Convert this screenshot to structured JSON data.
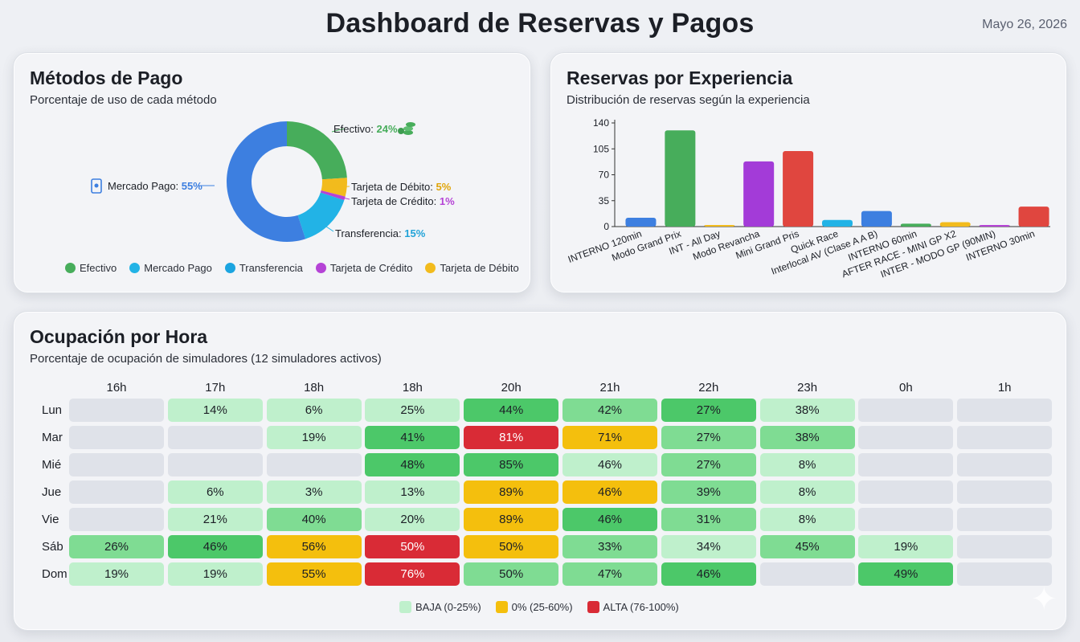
{
  "header": {
    "title": "Dashboard de Reservas y Pagos",
    "date": "Mayo 26, 2026"
  },
  "colors": {
    "efectivo": "#47ad5b",
    "mercado_pago": "#3d7fe0",
    "transferencia": "#22b3e6",
    "credito": "#b543d6",
    "debito": "#f2bb1d",
    "heat_empty": "#dfe2e9",
    "heat_low": "#bff0cc",
    "heat_mid_green": "#7fdc93",
    "heat_green": "#4cc869",
    "heat_yellow": "#f4bf0d",
    "heat_red": "#d92b36"
  },
  "payment": {
    "title": "Métodos de Pago",
    "subtitle": "Porcentaje de uso de cada método",
    "chart_data": {
      "type": "pie",
      "labels": [
        "Efectivo",
        "Tarjeta de Débito",
        "Tarjeta de Crédito",
        "Transferencia",
        "Mercado Pago"
      ],
      "values": [
        24,
        5,
        1,
        15,
        55
      ],
      "unit": "%"
    },
    "callouts": {
      "efectivo_label": "Efectivo:",
      "efectivo_value": "24%",
      "debito_label": "Tarjeta de Débito:",
      "debito_value": "5%",
      "credito_label": "Tarjeta de Crédito:",
      "credito_value": "1%",
      "transferencia_label": "Transferencia:",
      "transferencia_value": "15%",
      "mp_label": "Mercado Pago:",
      "mp_value": "55%"
    },
    "legend": [
      "Efectivo",
      "Mercado Pago",
      "Transferencia",
      "Tarjeta de Crédito",
      "Tarjeta de Débito"
    ]
  },
  "experiences": {
    "title": "Reservas por Experiencia",
    "subtitle": "Distribución de reservas según la experiencia",
    "chart_data": {
      "type": "bar",
      "categories": [
        "INTERNO 120min",
        "Modo Grand Prix",
        "INT - All Day",
        "Modo Revancha",
        "Mini Grand Pris",
        "Quick Race",
        "Interlocal AV (Clase A A B)",
        "INTERNO 60min",
        "AFTER RACE - MINI GP X2",
        "INTER - MODO GP (90MIN)",
        "INTERNO 30min"
      ],
      "values": [
        12,
        130,
        1,
        88,
        102,
        9,
        21,
        4,
        6,
        1,
        27
      ],
      "colors": [
        "#3d7fe0",
        "#47ad5b",
        "#f2bb1d",
        "#a33bd8",
        "#e0463f",
        "#22b3e6",
        "#3d7fe0",
        "#47ad5b",
        "#f2bb1d",
        "#b543d6",
        "#e0463f"
      ],
      "yticks": [
        0,
        35,
        70,
        105,
        140
      ],
      "ylim": [
        0,
        140
      ]
    }
  },
  "occupancy": {
    "title": "Ocupación por Hora",
    "subtitle": "Porcentaje de ocupación de simuladores (12 simuladores activos)",
    "chart_data": {
      "type": "heatmap",
      "columns": [
        "16h",
        "17h",
        "18h",
        "18h",
        "20h",
        "21h",
        "22h",
        "23h",
        "0h",
        "1h"
      ],
      "rows": [
        "Lun",
        "Mar",
        "Mié",
        "Jue",
        "Vie",
        "Sáb",
        "Dom"
      ],
      "values": [
        [
          "",
          "14%",
          "6%",
          "25%",
          "44%",
          "42%",
          "27%",
          "38%",
          "",
          ""
        ],
        [
          "",
          "",
          "19%",
          "41%",
          "81%",
          "71%",
          "27%",
          "38%",
          "",
          ""
        ],
        [
          "",
          "",
          "",
          "48%",
          "85%",
          "46%",
          "27%",
          "8%",
          "",
          ""
        ],
        [
          "",
          "6%",
          "3%",
          "13%",
          "89%",
          "46%",
          "39%",
          "8%",
          "",
          ""
        ],
        [
          "",
          "21%",
          "40%",
          "20%",
          "89%",
          "46%",
          "31%",
          "8%",
          "",
          ""
        ],
        [
          "26%",
          "46%",
          "56%",
          "50%",
          "50%",
          "33%",
          "34%",
          "45%",
          "19%",
          ""
        ],
        [
          "19%",
          "19%",
          "55%",
          "76%",
          "50%",
          "47%",
          "46%",
          "",
          "49%",
          ""
        ]
      ],
      "cell_colors": [
        [
          "empty",
          "low",
          "low",
          "low",
          "green",
          "mid",
          "green",
          "low",
          "empty",
          "empty"
        ],
        [
          "empty",
          "empty",
          "low",
          "green",
          "red",
          "yellow",
          "mid",
          "mid",
          "empty",
          "empty"
        ],
        [
          "empty",
          "empty",
          "empty",
          "green",
          "green",
          "low",
          "mid",
          "low",
          "empty",
          "empty"
        ],
        [
          "empty",
          "low",
          "low",
          "low",
          "yellow",
          "yellow",
          "mid",
          "low",
          "empty",
          "empty"
        ],
        [
          "empty",
          "low",
          "mid",
          "low",
          "yellow",
          "green",
          "mid",
          "low",
          "empty",
          "empty"
        ],
        [
          "mid",
          "green",
          "yellow",
          "red",
          "yellow",
          "mid",
          "low",
          "mid",
          "low",
          "empty"
        ],
        [
          "low",
          "low",
          "yellow",
          "red",
          "mid",
          "mid",
          "green",
          "empty",
          "green",
          "empty"
        ]
      ]
    },
    "legend": [
      "BAJA (0-25%)",
      "0% (25-60%)",
      "ALTA (76-100%)"
    ]
  }
}
